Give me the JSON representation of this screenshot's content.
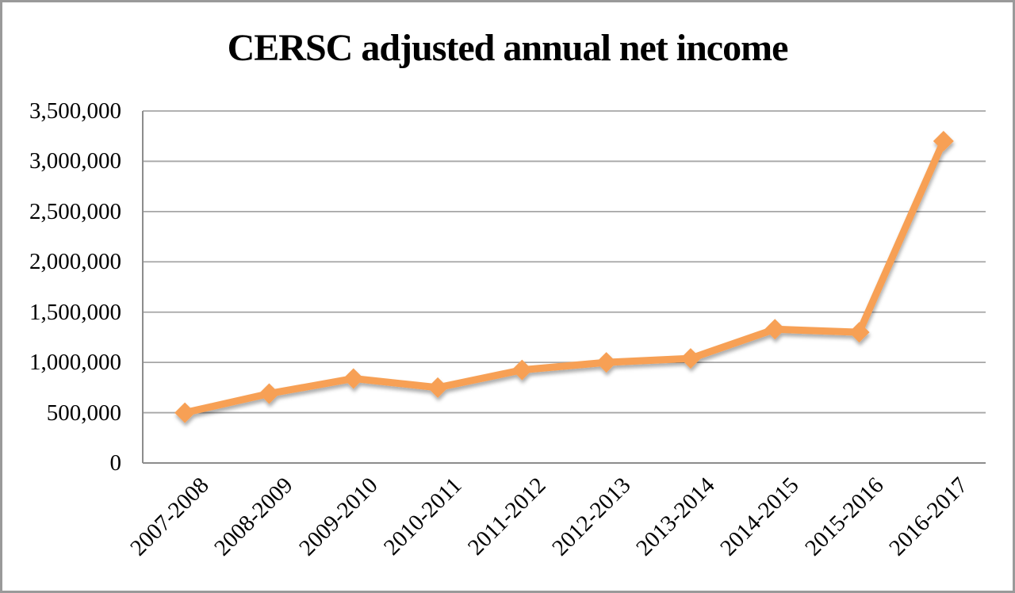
{
  "page": {
    "background_color": "#ffffff",
    "frame_border_color": "#9a9a9a"
  },
  "chart_data": {
    "type": "line",
    "title": "CERSC adjusted annual net income",
    "categories": [
      "2007-2008",
      "2008-2009",
      "2009-2010",
      "2010-2011",
      "2011-2012",
      "2012-2013",
      "2013-2014",
      "2014-2015",
      "2015-2016",
      "2016-2017"
    ],
    "values": [
      500000,
      690000,
      840000,
      750000,
      925000,
      1000000,
      1040000,
      1330000,
      1300000,
      3200000
    ],
    "xlabel": "",
    "ylabel": "",
    "ylim": [
      0,
      3500000
    ],
    "ytick_step": 500000,
    "ytick_values": [
      0,
      500000,
      1000000,
      1500000,
      2000000,
      2500000,
      3000000,
      3500000
    ],
    "ytick_labels": [
      "0",
      "500,000",
      "1,000,000",
      "1,500,000",
      "2,000,000",
      "2,500,000",
      "3,000,000",
      "3,500,000"
    ],
    "grid": true,
    "legend_position": "none",
    "line_color": "#F7A055",
    "marker": "diamond",
    "gridline_color": "#A6A6A6",
    "axis_line_color": "#8C8C8C",
    "text_color": "#000000"
  }
}
